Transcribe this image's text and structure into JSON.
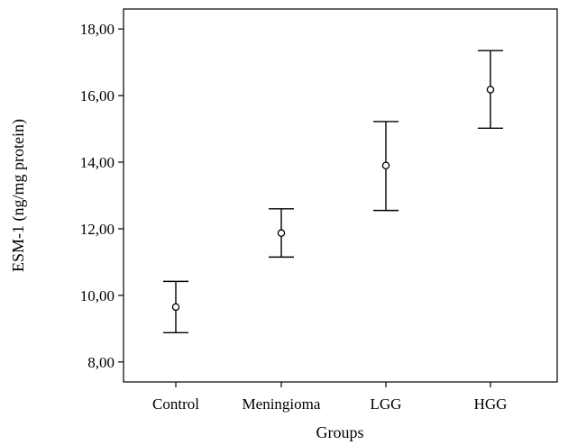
{
  "chart_data": {
    "type": "scatter",
    "title": "",
    "xlabel": "Groups",
    "ylabel": "ESM-1 (ng/mg protein)",
    "categories": [
      "Control",
      "Meningioma",
      "LGG",
      "HGG"
    ],
    "series": [
      {
        "mean": [
          9.65,
          11.87,
          13.9,
          16.18
        ],
        "lower": [
          8.88,
          11.15,
          12.55,
          15.02
        ],
        "upper": [
          10.42,
          12.6,
          15.22,
          17.35
        ]
      }
    ],
    "ylim": [
      7.4,
      18.6
    ],
    "yticks": [
      8,
      10,
      12,
      14,
      16,
      18
    ],
    "ytick_labels": [
      "8,00",
      "10,00",
      "12,00",
      "14,00",
      "16,00",
      "18,00"
    ],
    "grid": false,
    "legend": "none"
  }
}
